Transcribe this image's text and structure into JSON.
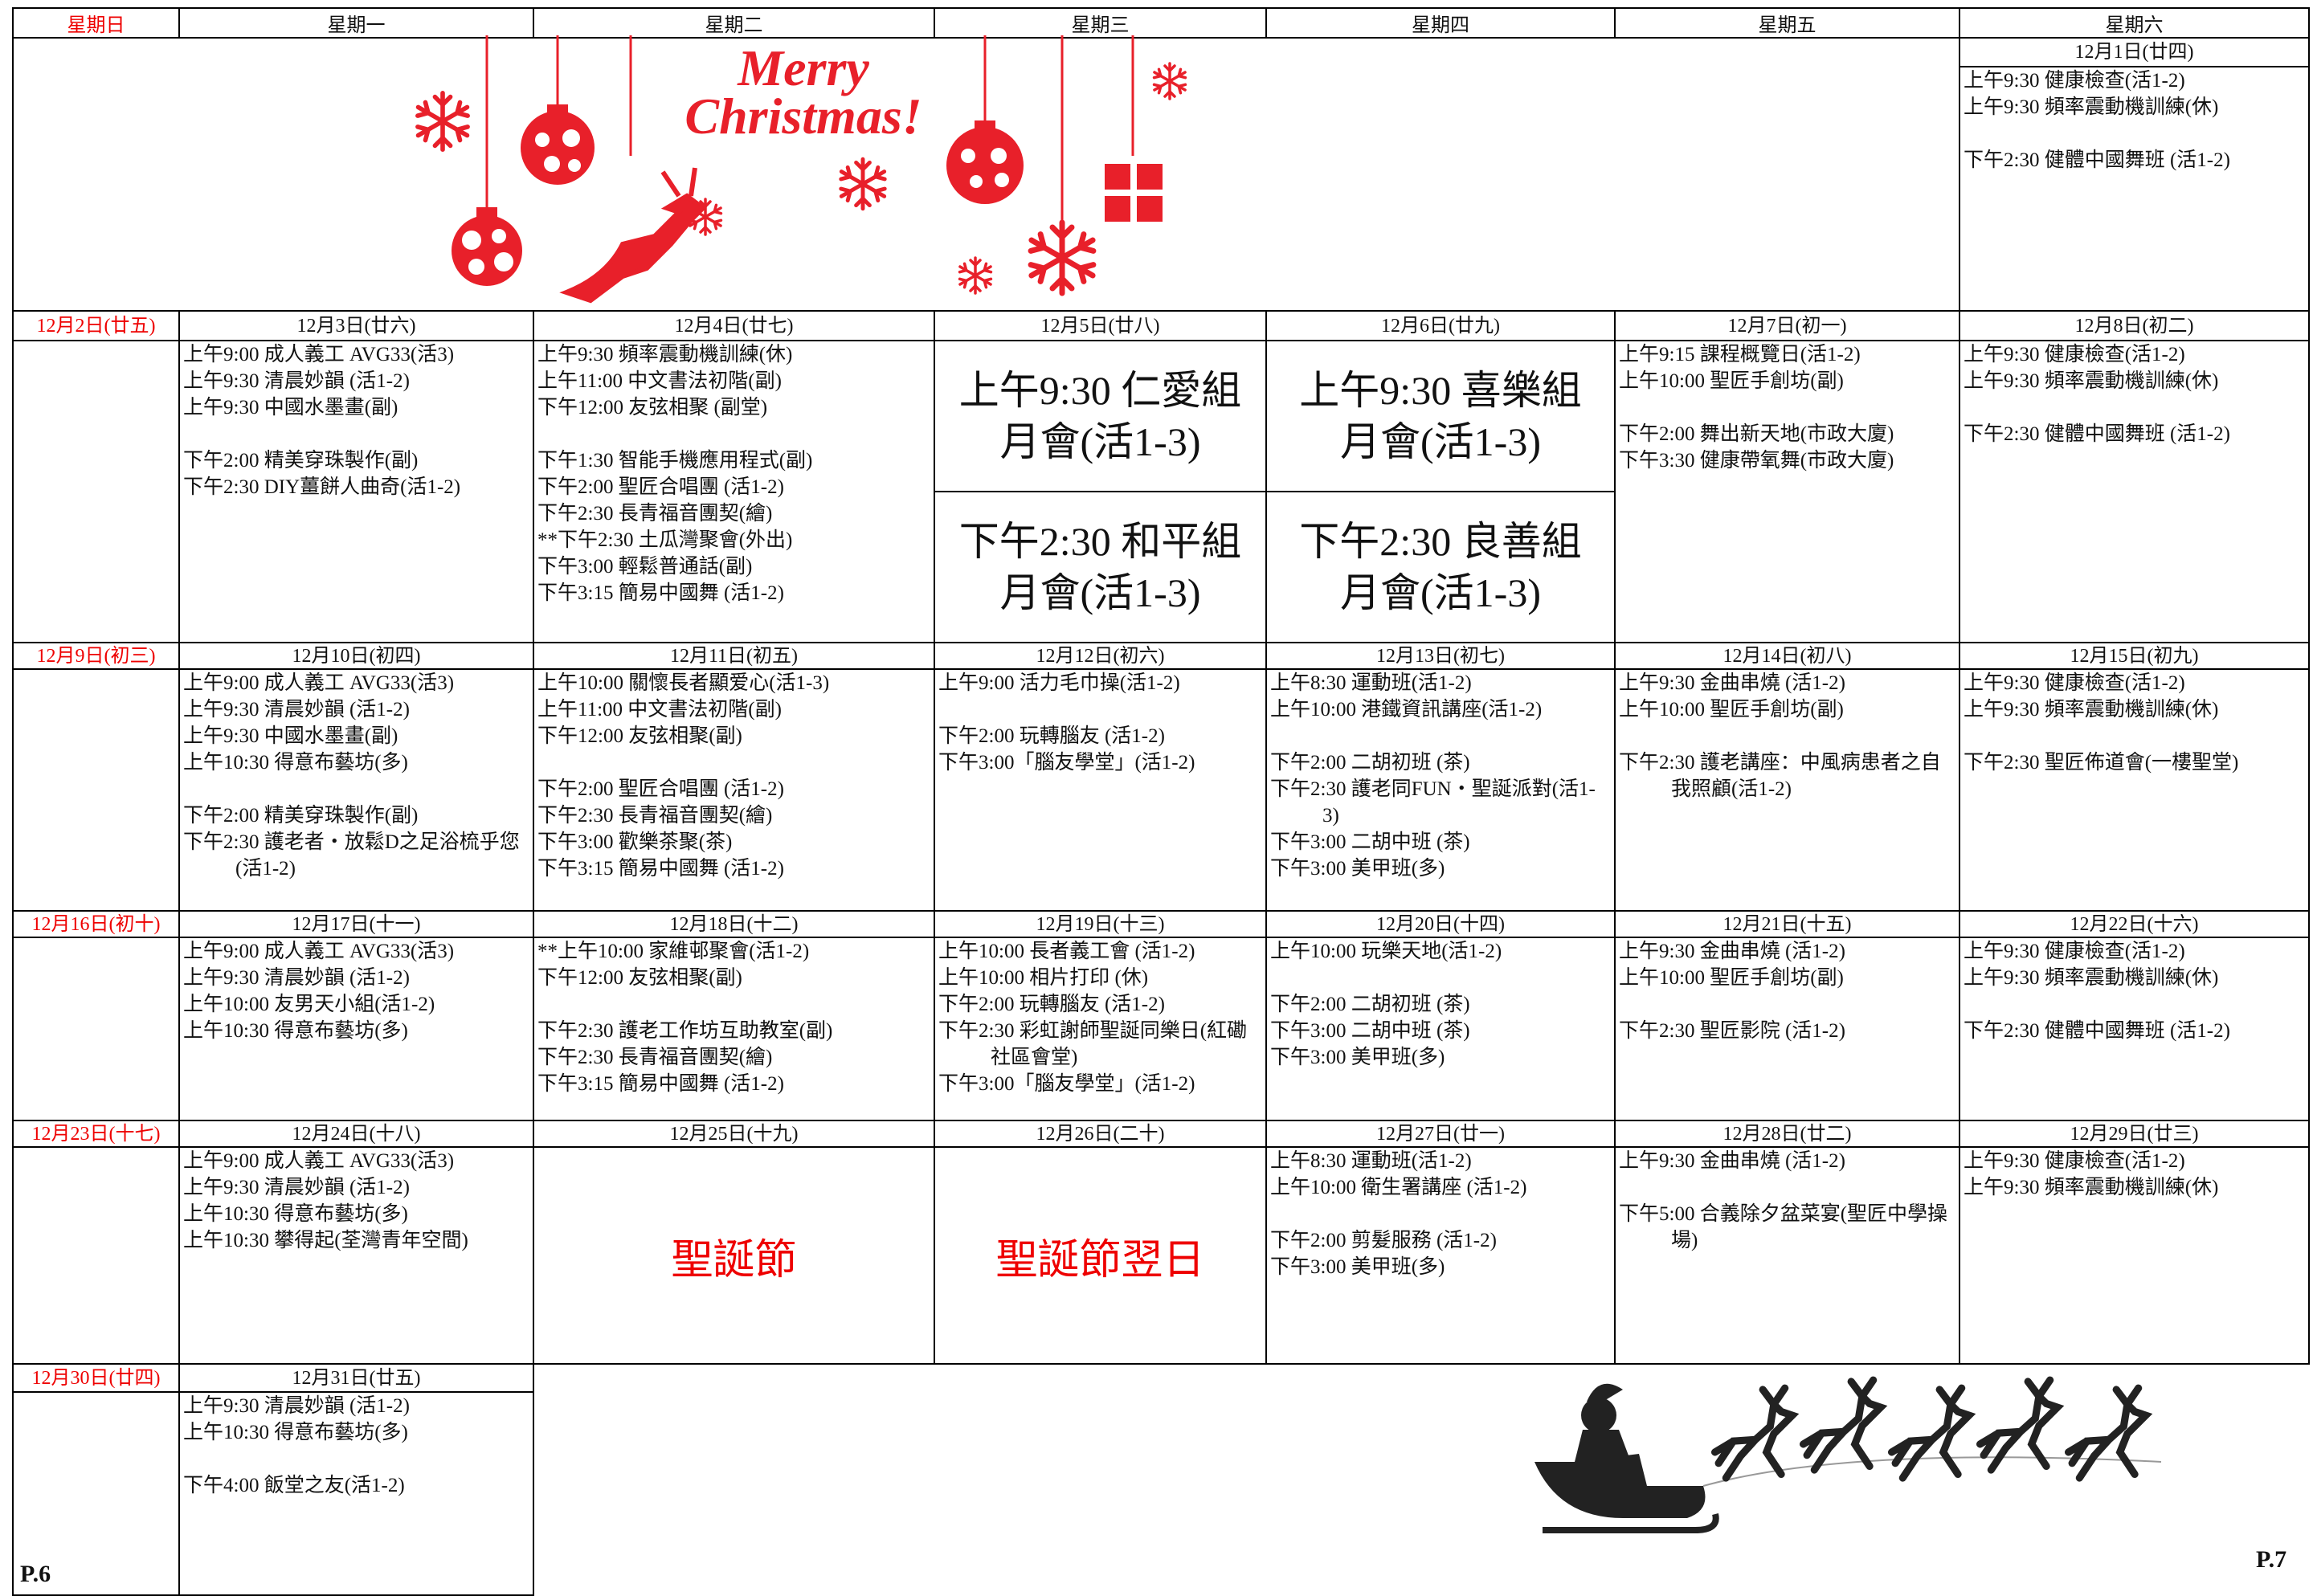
{
  "weekdays": [
    "星期日",
    "星期一",
    "星期二",
    "星期三",
    "星期四",
    "星期五",
    "星期六"
  ],
  "greeting": [
    "Merry",
    "Christmas!"
  ],
  "pages": [
    "P.6",
    "P.7"
  ],
  "weeks": [
    {
      "days": [
        {
          "date": "12月1日(廿四)",
          "events": [
            [
              "上午9:30 健康檢查(活1-2)",
              "上午9:30 頻率震動機訓練(休)"
            ],
            [
              "下午2:30 健體中國舞班 (活1-2)"
            ]
          ]
        }
      ]
    },
    {
      "days": [
        {
          "date": "12月2日(廿五)"
        },
        {
          "date": "12月3日(廿六)",
          "events": [
            [
              "上午9:00 成人義工 AVG33(活3)",
              "上午9:30 清晨妙韻 (活1-2)",
              "上午9:30 中國水墨畫(副)"
            ],
            [
              "下午2:00 精美穿珠製作(副)",
              "下午2:30 DIY薑餅人曲奇(活1-2)"
            ]
          ]
        },
        {
          "date": "12月4日(廿七)",
          "events": [
            [
              "上午9:30 頻率震動機訓練(休)",
              "上午11:00 中文書法初階(副)",
              "下午12:00 友弦相聚 (副堂)"
            ],
            [
              "下午1:30 智能手機應用程式(副)",
              "下午2:00 聖匠合唱團 (活1-2)",
              "下午2:30 長青福音團契(繪)",
              "**下午2:30 土瓜灣聚會(外出)",
              "下午3:00 輕鬆普通話(副)",
              "下午3:15 簡易中國舞 (活1-2)"
            ]
          ]
        },
        {
          "date": "12月5日(廿八)",
          "meetings": [
            [
              "上午9:30 仁愛組",
              "月會(活1-3)"
            ],
            [
              "下午2:30 和平組",
              "月會(活1-3)"
            ]
          ]
        },
        {
          "date": "12月6日(廿九)",
          "meetings": [
            [
              "上午9:30 喜樂組",
              "月會(活1-3)"
            ],
            [
              "下午2:30 良善組",
              "月會(活1-3)"
            ]
          ]
        },
        {
          "date": "12月7日(初一)",
          "events": [
            [
              "上午9:15 課程概覽日(活1-2)",
              "上午10:00 聖匠手創坊(副)"
            ],
            [
              "下午2:00 舞出新天地(市政大廈)",
              "下午3:30 健康帶氧舞(市政大廈)"
            ]
          ]
        },
        {
          "date": "12月8日(初二)",
          "events": [
            [
              "上午9:30 健康檢查(活1-2)",
              "上午9:30 頻率震動機訓練(休)"
            ],
            [
              "下午2:30 健體中國舞班 (活1-2)"
            ]
          ]
        }
      ]
    },
    {
      "days": [
        {
          "date": "12月9日(初三)"
        },
        {
          "date": "12月10日(初四)",
          "events": [
            [
              "上午9:00 成人義工 AVG33(活3)",
              "上午9:30 清晨妙韻 (活1-2)",
              "上午9:30 中國水墨畫(副)",
              "上午10:30 得意布藝坊(多)"
            ],
            [
              "下午2:00 精美穿珠製作(副)",
              "下午2:30 護老者・放鬆D之足浴梳乎您(活1-2)"
            ]
          ]
        },
        {
          "date": "12月11日(初五)",
          "events": [
            [
              "上午10:00 關懷長者顯爱心(活1-3)",
              "上午11:00 中文書法初階(副)",
              "下午12:00 友弦相聚(副)"
            ],
            [
              "下午2:00 聖匠合唱團 (活1-2)",
              "下午2:30 長青福音團契(繪)",
              "下午3:00 歡樂茶聚(茶)",
              "下午3:15 簡易中國舞 (活1-2)"
            ]
          ]
        },
        {
          "date": "12月12日(初六)",
          "events": [
            [
              "上午9:00 活力毛巾操(活1-2)"
            ],
            [
              "下午2:00 玩轉腦友 (活1-2)",
              "下午3:00「腦友學堂」(活1-2)"
            ]
          ]
        },
        {
          "date": "12月13日(初七)",
          "events": [
            [
              "上午8:30 運動班(活1-2)",
              "上午10:00 港鐵資訊講座(活1-2)"
            ],
            [
              "下午2:00 二胡初班 (茶)",
              "下午2:30 護老同FUN・聖誕派對(活1-3)",
              "下午3:00 二胡中班 (茶)",
              "下午3:00 美甲班(多)"
            ]
          ]
        },
        {
          "date": "12月14日(初八)",
          "events": [
            [
              "上午9:30 金曲串燒 (活1-2)",
              "上午10:00 聖匠手創坊(副)"
            ],
            [
              "下午2:30 護老講座：中風病患者之自我照顧(活1-2)"
            ]
          ]
        },
        {
          "date": "12月15日(初九)",
          "events": [
            [
              "上午9:30 健康檢查(活1-2)",
              "上午9:30 頻率震動機訓練(休)"
            ],
            [
              "下午2:30 聖匠佈道會(一樓聖堂)"
            ]
          ]
        }
      ]
    },
    {
      "days": [
        {
          "date": "12月16日(初十)"
        },
        {
          "date": "12月17日(十一)",
          "events": [
            [
              "上午9:00 成人義工 AVG33(活3)",
              "上午9:30 清晨妙韻 (活1-2)",
              "上午10:00 友男天小組(活1-2)",
              "上午10:30 得意布藝坊(多)"
            ]
          ]
        },
        {
          "date": "12月18日(十二)",
          "events": [
            [
              "**上午10:00 家維邨聚會(活1-2)",
              "下午12:00 友弦相聚(副)"
            ],
            [
              "下午2:30 護老工作坊互助教室(副)",
              "下午2:30 長青福音團契(繪)",
              "下午3:15 簡易中國舞 (活1-2)"
            ]
          ]
        },
        {
          "date": "12月19日(十三)",
          "events": [
            [
              "上午10:00 長者義工會 (活1-2)",
              "上午10:00 相片打印 (休)",
              "下午2:00 玩轉腦友 (活1-2)",
              "下午2:30 彩虹謝師聖誕同樂日(紅磡社區會堂)",
              "下午3:00「腦友學堂」(活1-2)"
            ]
          ]
        },
        {
          "date": "12月20日(十四)",
          "events": [
            [
              "上午10:00 玩樂天地(活1-2)"
            ],
            [
              "下午2:00 二胡初班 (茶)",
              "下午3:00 二胡中班 (茶)",
              "下午3:00 美甲班(多)"
            ]
          ]
        },
        {
          "date": "12月21日(十五)",
          "events": [
            [
              "上午9:30 金曲串燒 (活1-2)",
              "上午10:00 聖匠手創坊(副)"
            ],
            [
              "下午2:30 聖匠影院 (活1-2)"
            ]
          ]
        },
        {
          "date": "12月22日(十六)",
          "events": [
            [
              "上午9:30 健康檢查(活1-2)",
              "上午9:30 頻率震動機訓練(休)"
            ],
            [
              "下午2:30 健體中國舞班 (活1-2)"
            ]
          ]
        }
      ]
    },
    {
      "days": [
        {
          "date": "12月23日(十七)"
        },
        {
          "date": "12月24日(十八)",
          "events": [
            [
              "上午9:00 成人義工 AVG33(活3)",
              "上午9:30 清晨妙韻 (活1-2)",
              "上午10:30 得意布藝坊(多)",
              "上午10:30 攀得起(荃灣青年空間)"
            ]
          ]
        },
        {
          "date": "12月25日(十九)",
          "holiday": "聖誕節"
        },
        {
          "date": "12月26日(二十)",
          "holiday": "聖誕節翌日"
        },
        {
          "date": "12月27日(廿一)",
          "events": [
            [
              "上午8:30 運動班(活1-2)",
              "上午10:00 衛生署講座 (活1-2)"
            ],
            [
              "下午2:00 剪髮服務 (活1-2)",
              "下午3:00 美甲班(多)"
            ]
          ]
        },
        {
          "date": "12月28日(廿二)",
          "events": [
            [
              "上午9:30 金曲串燒 (活1-2)"
            ],
            [
              "下午5:00 合義除夕盆菜宴(聖匠中學操場)"
            ]
          ]
        },
        {
          "date": "12月29日(廿三)",
          "events": [
            [
              "上午9:30 健康檢查(活1-2)",
              "上午9:30 頻率震動機訓練(休)"
            ]
          ]
        }
      ]
    },
    {
      "days": [
        {
          "date": "12月30日(廿四)"
        },
        {
          "date": "12月31日(廿五)",
          "events": [
            [
              "上午9:30 清晨妙韻 (活1-2)",
              "上午10:30 得意布藝坊(多)"
            ],
            [
              "下午4:00 飯堂之友(活1-2)"
            ]
          ]
        }
      ]
    }
  ]
}
